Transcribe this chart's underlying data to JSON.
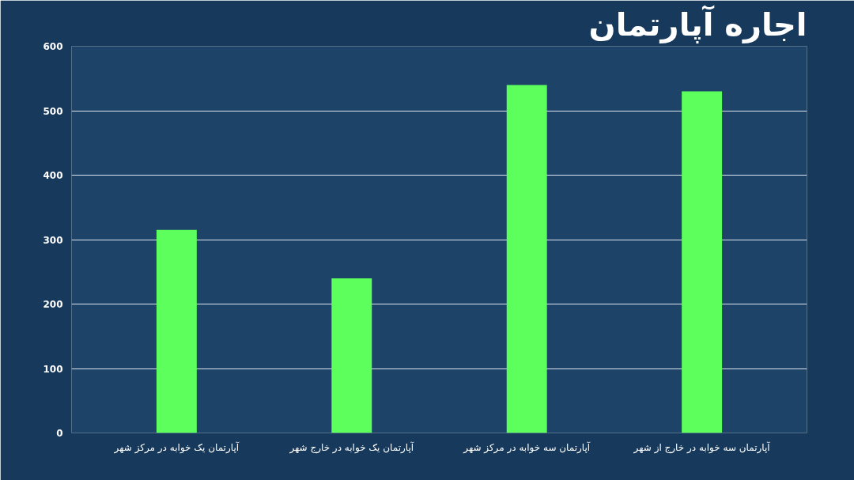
{
  "chart_data": {
    "type": "bar",
    "title": "اجاره آپارتمان",
    "categories": [
      "آپارتمان یک خوابه در مرکز شهر",
      "آپارتمان یک خوابه در خارج شهر",
      "آپارتمان سه خوابه در مرکز شهر",
      "آپارتمان سه خوابه در خارج از شهر"
    ],
    "values": [
      315,
      240,
      540,
      530
    ],
    "color": "#5cff5c",
    "ylim": [
      0,
      600
    ],
    "yticks": [
      0,
      100,
      200,
      300,
      400,
      500,
      600
    ],
    "grid": "y"
  }
}
